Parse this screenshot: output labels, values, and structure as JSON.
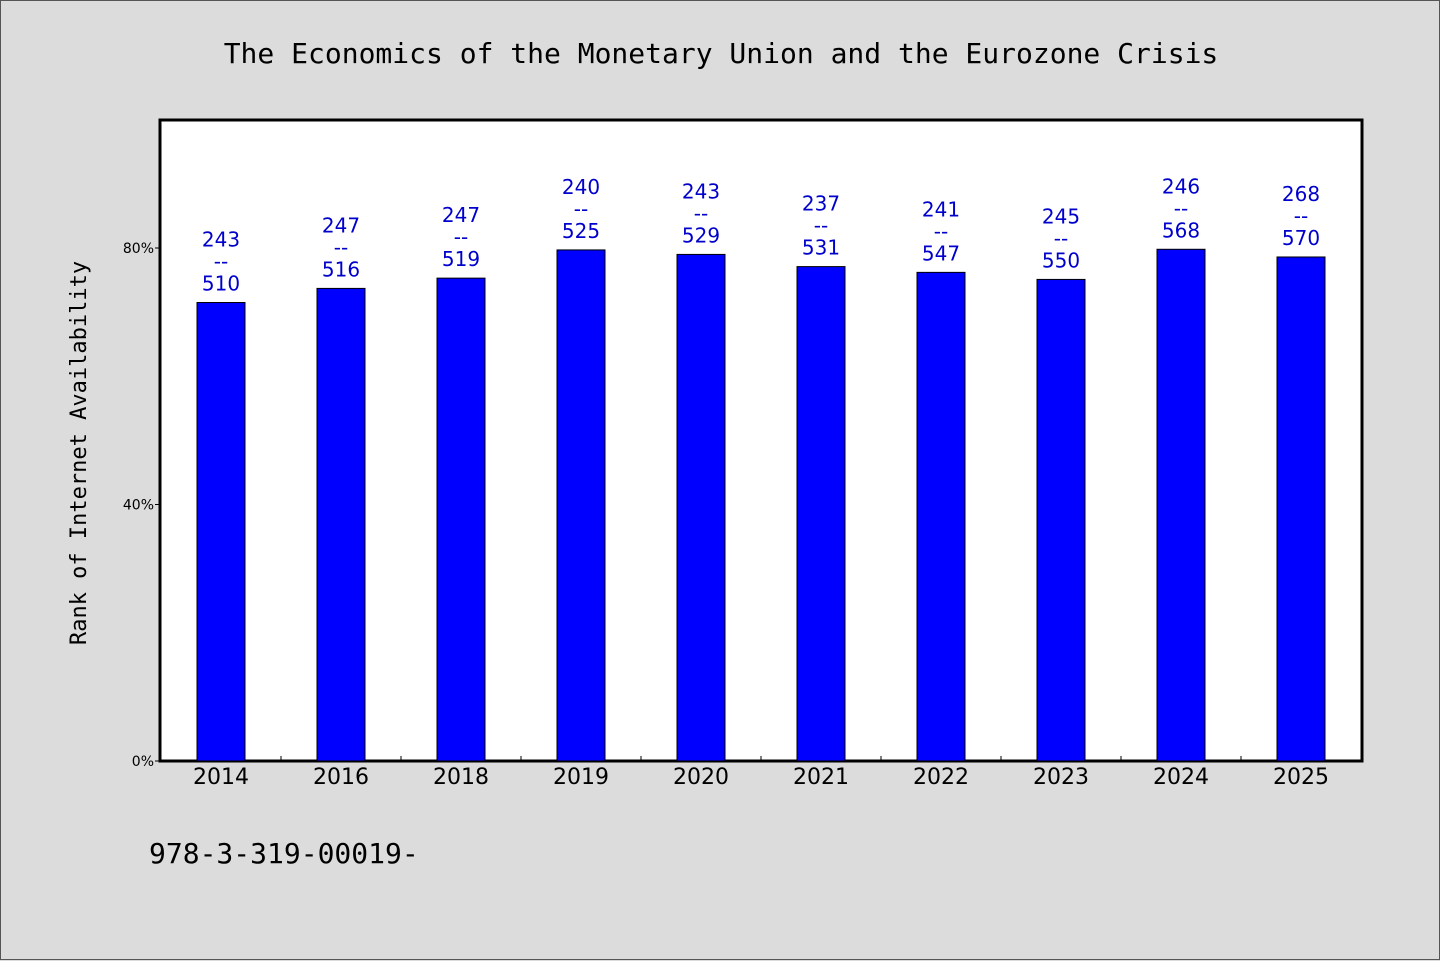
{
  "chart_data": {
    "type": "bar",
    "title": "The Economics of the Monetary Union and the Eurozone Crisis",
    "ylabel": "Rank of Internet Availability",
    "xlabel": "",
    "categories": [
      "2014",
      "2016",
      "2018",
      "2019",
      "2020",
      "2021",
      "2022",
      "2023",
      "2024",
      "2025"
    ],
    "values": [
      71.5,
      73.7,
      75.3,
      79.7,
      79.0,
      77.1,
      76.2,
      75.1,
      79.8,
      78.6
    ],
    "value_unit": "%",
    "data_labels": [
      [
        "243",
        "--",
        "510"
      ],
      [
        "247",
        "--",
        "516"
      ],
      [
        "247",
        "--",
        "519"
      ],
      [
        "240",
        "--",
        "525"
      ],
      [
        "243",
        "--",
        "529"
      ],
      [
        "237",
        "--",
        "531"
      ],
      [
        "241",
        "--",
        "547"
      ],
      [
        "245",
        "--",
        "550"
      ],
      [
        "246",
        "--",
        "568"
      ],
      [
        "268",
        "--",
        "570"
      ]
    ],
    "ylim": [
      0,
      100
    ],
    "yticks": [
      0,
      40,
      80
    ],
    "ytick_labels": [
      "0%",
      "40%",
      "80%"
    ],
    "grid": false,
    "legend": "none",
    "bar_color": "#0000ff",
    "label_color": "#0000cc"
  },
  "footer_text": "978-3-319-00019-"
}
